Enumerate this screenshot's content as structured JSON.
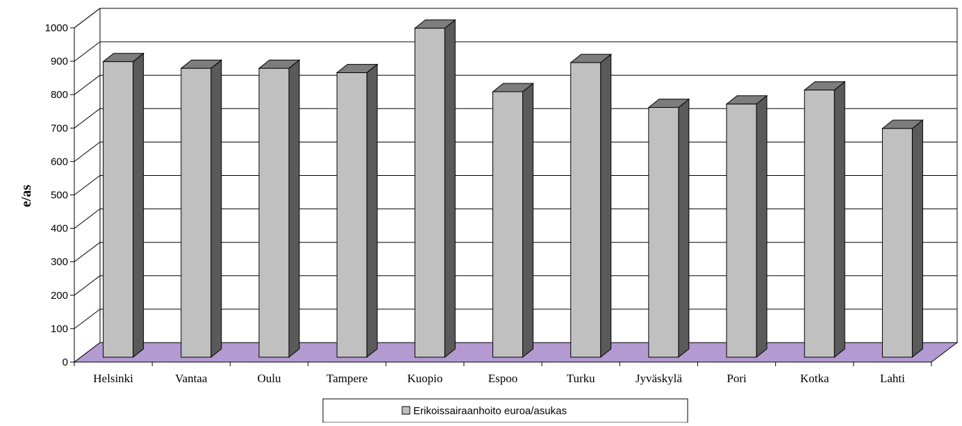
{
  "chart_data": {
    "type": "bar",
    "style": "3d-column",
    "categories": [
      "Helsinki",
      "Vantaa",
      "Oulu",
      "Tampere",
      "Kuopio",
      "Espoo",
      "Turku",
      "Jyväskylä",
      "Pori",
      "Kotka",
      "Lahti"
    ],
    "series": [
      {
        "name": "Erikoissairaanhoito euroa/asukas",
        "values": [
          905,
          885,
          885,
          872,
          1005,
          815,
          902,
          768,
          778,
          820,
          705
        ]
      }
    ],
    "yticks": [
      "0",
      "100",
      "200",
      "300",
      "400",
      "500",
      "600",
      "700",
      "800",
      "900",
      "1000"
    ],
    "ylim": [
      0,
      1000
    ],
    "ylabel": "e/as",
    "xlabel": "",
    "title": "",
    "grid": true,
    "legend_position": "bottom",
    "colors": {
      "bar_front": "#c0c0c0",
      "bar_side": "#5a5a5a",
      "bar_top": "#7d7d7d",
      "floor": "#b39ad1",
      "wall": "#ffffff",
      "gridline": "#000000"
    }
  }
}
